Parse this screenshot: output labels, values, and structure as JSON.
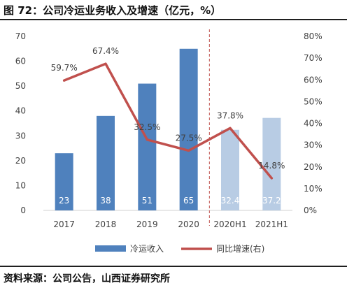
{
  "figure_title": "图 72：公司冷运业务收入及增速（亿元，%）",
  "source_note": "资料来源：公司公告，山西证券研究所",
  "chart_data": {
    "type": "bar+line",
    "categories": [
      "2017",
      "2018",
      "2019",
      "2020",
      "2020H1",
      "2021H1"
    ],
    "series": [
      {
        "name": "冷运收入",
        "type": "bar",
        "axis": "left",
        "values": [
          23,
          38,
          51,
          65,
          32.4,
          37.2
        ],
        "labels": [
          "23",
          "38",
          "51",
          "65",
          "32.4",
          "37.2"
        ]
      },
      {
        "name": "同比增速(右)",
        "type": "line",
        "axis": "right",
        "values": [
          59.7,
          67.4,
          32.5,
          27.5,
          37.8,
          14.8
        ],
        "labels": [
          "59.7%",
          "67.4%",
          "32.5%",
          "27.5%",
          "37.8%",
          "14.8%"
        ]
      }
    ],
    "y_left": {
      "min": 0,
      "max": 70,
      "ticks": [
        "0",
        "10",
        "20",
        "30",
        "40",
        "50",
        "60",
        "70"
      ]
    },
    "y_right": {
      "min": 0,
      "max": 80,
      "ticks": [
        "0%",
        "10%",
        "20%",
        "30%",
        "40%",
        "50%",
        "60%",
        "70%",
        "80%"
      ]
    },
    "colors": {
      "bar_full": "#4f81bd",
      "bar_half": "#b8cce4",
      "line": "#c0504d",
      "divider": "#c0504d",
      "label_on_bar": "#ffffff"
    },
    "divider_between": [
      "2020",
      "2020H1"
    ],
    "legend_position": "bottom",
    "grid": false
  }
}
